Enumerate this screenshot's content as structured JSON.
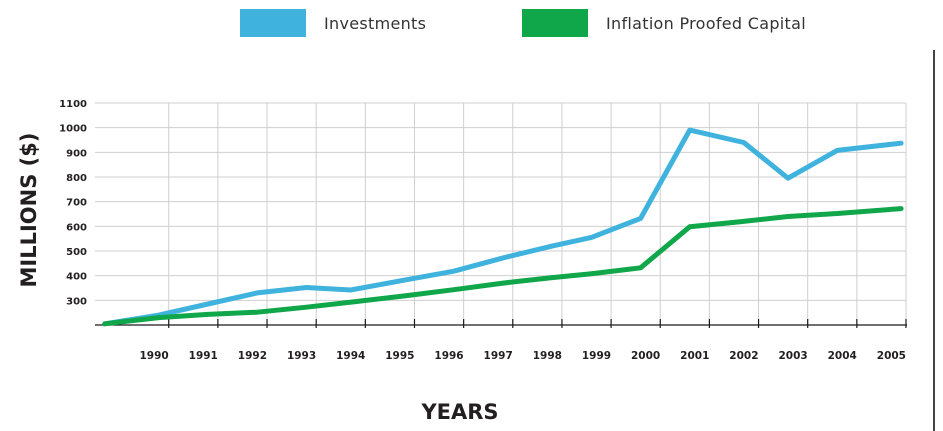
{
  "colors": {
    "investments": "#3fb3dd",
    "inflation": "#10a64a",
    "grid": "#cfcfcf",
    "axis": "#1a1a1a"
  },
  "legend": {
    "investments_label": "Investments",
    "inflation_label": "Inflation Proofed Capital"
  },
  "chart_data": {
    "type": "line",
    "ylabel": "MILLIONS ($)",
    "xlabel": "YEARS",
    "ylim": [
      200,
      1100
    ],
    "yticks": [
      300,
      400,
      500,
      600,
      700,
      800,
      900,
      1000,
      1100
    ],
    "xlim": [
      1988.5,
      2005
    ],
    "xticks": [
      "1990",
      "1991",
      "1992",
      "1993",
      "1994",
      "1995",
      "1996",
      "1997",
      "1998",
      "1999",
      "2000",
      "2001",
      "2002",
      "2003",
      "2004",
      "2005"
    ],
    "grid": true,
    "legend_position": "top",
    "series": [
      {
        "name": "Investments",
        "color": "#3fb3dd",
        "x": [
          1988.7,
          1989.8,
          1990.8,
          1991.8,
          1992.8,
          1993.7,
          1994.8,
          1995.8,
          1996.8,
          1997.8,
          1998.6,
          1999.6,
          2000.6,
          2001.7,
          2002.6,
          2003.6,
          2004.9
        ],
        "y": [
          205,
          240,
          285,
          330,
          352,
          342,
          382,
          418,
          472,
          520,
          555,
          632,
          990,
          940,
          795,
          908,
          937
        ]
      },
      {
        "name": "Inflation Proofed Capital",
        "color": "#10a64a",
        "x": [
          1988.7,
          1989.8,
          1990.8,
          1991.8,
          1992.8,
          1993.8,
          1994.8,
          1995.8,
          1996.8,
          1997.8,
          1998.6,
          1999.6,
          2000.6,
          2001.6,
          2002.6,
          2003.6,
          2004.9
        ],
        "y": [
          205,
          230,
          243,
          252,
          272,
          295,
          318,
          343,
          370,
          392,
          408,
          432,
          598,
          618,
          640,
          652,
          672
        ]
      }
    ]
  }
}
